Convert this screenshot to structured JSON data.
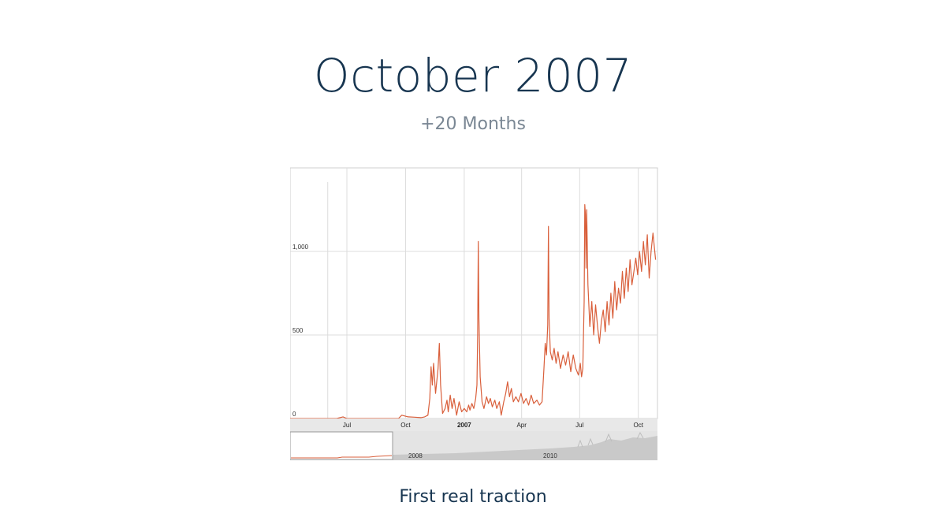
{
  "slide": {
    "title": "October 2007",
    "subtitle": "+20 Months",
    "caption": "First real traction"
  },
  "chart_data": {
    "type": "line",
    "color": "#d95f3b",
    "y_ticks": [
      {
        "value": 0,
        "label": "0"
      },
      {
        "value": 500,
        "label": "500"
      },
      {
        "value": 1000,
        "label": "1,000"
      }
    ],
    "x_ticks": [
      {
        "date": "2006-07-01",
        "label": "Jul",
        "bold": false
      },
      {
        "date": "2006-10-01",
        "label": "Oct",
        "bold": false
      },
      {
        "date": "2007-01-01",
        "label": "2007",
        "bold": true
      },
      {
        "date": "2007-04-01",
        "label": "Apr",
        "bold": false
      },
      {
        "date": "2007-07-01",
        "label": "Jul",
        "bold": false
      },
      {
        "date": "2007-10-01",
        "label": "Oct",
        "bold": false
      }
    ],
    "xlim": [
      "2006-04-03",
      "2007-10-31"
    ],
    "ylim": [
      0,
      1500
    ],
    "grid": true,
    "series": [
      {
        "points": [
          [
            "2006-04-03",
            0
          ],
          [
            "2006-05-15",
            0
          ],
          [
            "2006-06-01",
            0
          ],
          [
            "2006-06-15",
            0
          ],
          [
            "2006-06-25",
            10
          ],
          [
            "2006-07-01",
            0
          ],
          [
            "2006-08-01",
            0
          ],
          [
            "2006-09-01",
            0
          ],
          [
            "2006-09-20",
            0
          ],
          [
            "2006-09-25",
            20
          ],
          [
            "2006-10-05",
            10
          ],
          [
            "2006-10-15",
            8
          ],
          [
            "2006-10-25",
            5
          ],
          [
            "2006-10-31",
            10
          ],
          [
            "2006-11-05",
            20
          ],
          [
            "2006-11-08",
            120
          ],
          [
            "2006-11-10",
            310
          ],
          [
            "2006-11-12",
            200
          ],
          [
            "2006-11-14",
            330
          ],
          [
            "2006-11-17",
            150
          ],
          [
            "2006-11-21",
            300
          ],
          [
            "2006-11-23",
            450
          ],
          [
            "2006-11-25",
            200
          ],
          [
            "2006-11-28",
            30
          ],
          [
            "2006-12-02",
            60
          ],
          [
            "2006-12-05",
            110
          ],
          [
            "2006-12-07",
            40
          ],
          [
            "2006-12-10",
            140
          ],
          [
            "2006-12-13",
            60
          ],
          [
            "2006-12-16",
            120
          ],
          [
            "2006-12-20",
            20
          ],
          [
            "2006-12-24",
            100
          ],
          [
            "2006-12-28",
            40
          ],
          [
            "2007-01-01",
            60
          ],
          [
            "2007-01-05",
            40
          ],
          [
            "2007-01-08",
            80
          ],
          [
            "2007-01-10",
            50
          ],
          [
            "2007-01-13",
            90
          ],
          [
            "2007-01-16",
            60
          ],
          [
            "2007-01-19",
            120
          ],
          [
            "2007-01-21",
            200
          ],
          [
            "2007-01-22",
            500
          ],
          [
            "2007-01-23",
            1060
          ],
          [
            "2007-01-24",
            600
          ],
          [
            "2007-01-26",
            250
          ],
          [
            "2007-01-29",
            100
          ],
          [
            "2007-02-01",
            60
          ],
          [
            "2007-02-05",
            130
          ],
          [
            "2007-02-08",
            90
          ],
          [
            "2007-02-11",
            120
          ],
          [
            "2007-02-14",
            70
          ],
          [
            "2007-02-18",
            110
          ],
          [
            "2007-02-21",
            60
          ],
          [
            "2007-02-25",
            100
          ],
          [
            "2007-02-28",
            20
          ],
          [
            "2007-03-04",
            100
          ],
          [
            "2007-03-07",
            150
          ],
          [
            "2007-03-10",
            220
          ],
          [
            "2007-03-13",
            130
          ],
          [
            "2007-03-16",
            180
          ],
          [
            "2007-03-19",
            100
          ],
          [
            "2007-03-23",
            130
          ],
          [
            "2007-03-27",
            100
          ],
          [
            "2007-03-31",
            150
          ],
          [
            "2007-04-04",
            90
          ],
          [
            "2007-04-08",
            120
          ],
          [
            "2007-04-12",
            80
          ],
          [
            "2007-04-16",
            140
          ],
          [
            "2007-04-20",
            90
          ],
          [
            "2007-04-25",
            110
          ],
          [
            "2007-04-29",
            80
          ],
          [
            "2007-05-03",
            100
          ],
          [
            "2007-05-06",
            300
          ],
          [
            "2007-05-08",
            450
          ],
          [
            "2007-05-10",
            380
          ],
          [
            "2007-05-12",
            560
          ],
          [
            "2007-05-13",
            1150
          ],
          [
            "2007-05-14",
            600
          ],
          [
            "2007-05-16",
            400
          ],
          [
            "2007-05-19",
            350
          ],
          [
            "2007-05-22",
            420
          ],
          [
            "2007-05-25",
            330
          ],
          [
            "2007-05-28",
            400
          ],
          [
            "2007-06-01",
            300
          ],
          [
            "2007-06-05",
            380
          ],
          [
            "2007-06-09",
            320
          ],
          [
            "2007-06-13",
            400
          ],
          [
            "2007-06-17",
            280
          ],
          [
            "2007-06-21",
            380
          ],
          [
            "2007-06-25",
            300
          ],
          [
            "2007-06-29",
            260
          ],
          [
            "2007-07-02",
            330
          ],
          [
            "2007-07-04",
            250
          ],
          [
            "2007-07-06",
            300
          ],
          [
            "2007-07-08",
            700
          ],
          [
            "2007-07-09",
            1280
          ],
          [
            "2007-07-10",
            1220
          ],
          [
            "2007-07-11",
            900
          ],
          [
            "2007-07-12",
            1250
          ],
          [
            "2007-07-14",
            800
          ],
          [
            "2007-07-17",
            550
          ],
          [
            "2007-07-20",
            700
          ],
          [
            "2007-07-23",
            500
          ],
          [
            "2007-07-26",
            680
          ],
          [
            "2007-07-29",
            550
          ],
          [
            "2007-08-01",
            450
          ],
          [
            "2007-08-04",
            580
          ],
          [
            "2007-08-07",
            650
          ],
          [
            "2007-08-10",
            520
          ],
          [
            "2007-08-13",
            700
          ],
          [
            "2007-08-16",
            560
          ],
          [
            "2007-08-19",
            750
          ],
          [
            "2007-08-22",
            600
          ],
          [
            "2007-08-25",
            820
          ],
          [
            "2007-08-28",
            650
          ],
          [
            "2007-08-31",
            780
          ],
          [
            "2007-09-03",
            690
          ],
          [
            "2007-09-06",
            880
          ],
          [
            "2007-09-09",
            720
          ],
          [
            "2007-09-12",
            900
          ],
          [
            "2007-09-15",
            760
          ],
          [
            "2007-09-18",
            950
          ],
          [
            "2007-09-21",
            800
          ],
          [
            "2007-09-24",
            880
          ],
          [
            "2007-09-27",
            960
          ],
          [
            "2007-09-30",
            860
          ],
          [
            "2007-10-03",
            1000
          ],
          [
            "2007-10-06",
            880
          ],
          [
            "2007-10-09",
            1060
          ],
          [
            "2007-10-12",
            920
          ],
          [
            "2007-10-15",
            1100
          ],
          [
            "2007-10-18",
            840
          ],
          [
            "2007-10-21",
            1000
          ],
          [
            "2007-10-24",
            1110
          ],
          [
            "2007-10-28",
            950
          ]
        ]
      }
    ],
    "overview": {
      "x_labels": [
        {
          "label": "2008"
        },
        {
          "label": "2010"
        }
      ]
    }
  }
}
